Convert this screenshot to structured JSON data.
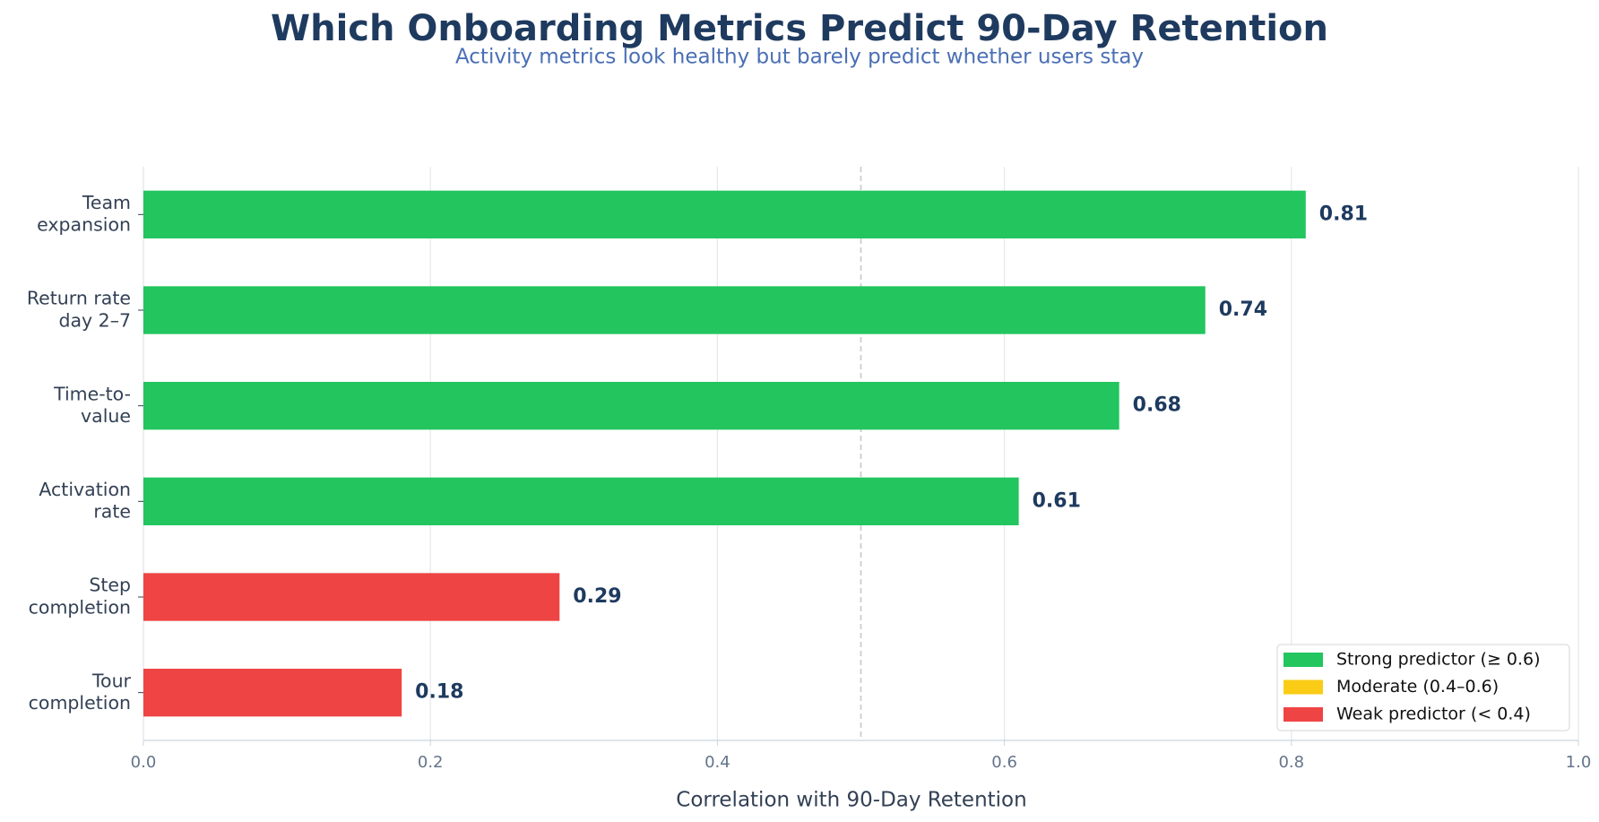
{
  "chart_data": {
    "type": "hbar",
    "title": "Which Onboarding Metrics Predict 90-Day Retention",
    "subtitle": "Activity metrics look healthy but barely predict whether users stay",
    "x_label": "Correlation with 90-Day Retention",
    "categories": [
      "Team\nexpansion",
      "Return rate\nday 2–7",
      "Time-to-\nvalue",
      "Activation\nrate",
      "Step\ncompletion",
      "Tour\ncompletion"
    ],
    "values": [
      0.81,
      0.74,
      0.68,
      0.61,
      0.29,
      0.18
    ],
    "colors": [
      "#22c55e",
      "#22c55e",
      "#22c55e",
      "#22c55e",
      "#ef4444",
      "#ef4444"
    ],
    "xlim": [
      0,
      1
    ],
    "xticks": [
      {
        "value": 0,
        "label": "0.0"
      },
      0.2,
      0.4,
      0.6,
      0.8,
      {
        "value": 1,
        "label": "1.0"
      }
    ],
    "grid": true,
    "reference_line": 0.5,
    "legend_position": "lower right",
    "legend": [
      {
        "label": "Strong predictor (≥ 0.6)",
        "color": "#22c55e"
      },
      {
        "label": "Moderate (0.4–0.6)",
        "color": "#facc15"
      },
      {
        "label": "Weak predictor (< 0.4)",
        "color": "#ef4444"
      }
    ]
  }
}
